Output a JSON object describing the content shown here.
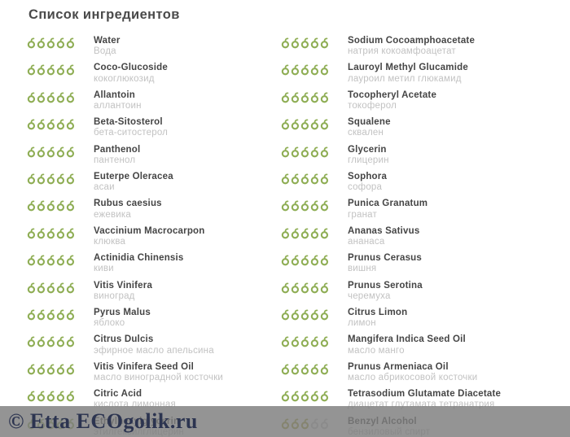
{
  "header": {
    "title": "Список ингредиентов"
  },
  "palette": {
    "drop_green": "#8fae55",
    "drop_olive": "#a9a733",
    "drop_gray": "#cccccc",
    "name_color": "#454545",
    "translation_color": "#c2c2c2",
    "watermark_text_color": "#2c3450"
  },
  "rating_scale": 5,
  "columns": [
    {
      "items": [
        {
          "name": "Water",
          "translation": "Вода",
          "drops": [
            "green",
            "green",
            "green",
            "green",
            "green"
          ]
        },
        {
          "name": "Coco-Glucoside",
          "translation": "кокоглюкозид",
          "drops": [
            "green",
            "green",
            "green",
            "green",
            "green"
          ]
        },
        {
          "name": "Allantoin",
          "translation": "аллантоин",
          "drops": [
            "green",
            "green",
            "green",
            "green",
            "green"
          ]
        },
        {
          "name": "Beta-Sitosterol",
          "translation": "бета-ситостерол",
          "drops": [
            "green",
            "green",
            "green",
            "green",
            "green"
          ]
        },
        {
          "name": "Panthenol",
          "translation": "пантенол",
          "drops": [
            "green",
            "green",
            "green",
            "green",
            "green"
          ]
        },
        {
          "name": "Euterpe Oleracea",
          "translation": "асаи",
          "drops": [
            "green",
            "green",
            "green",
            "green",
            "green"
          ]
        },
        {
          "name": "Rubus caesius",
          "translation": "ежевика",
          "drops": [
            "green",
            "green",
            "green",
            "green",
            "green"
          ]
        },
        {
          "name": "Vaccinium Macrocarpon",
          "translation": "клюква",
          "drops": [
            "green",
            "green",
            "green",
            "green",
            "green"
          ]
        },
        {
          "name": "Actinidia Chinensis",
          "translation": "киви",
          "drops": [
            "green",
            "green",
            "green",
            "green",
            "green"
          ]
        },
        {
          "name": "Vitis Vinifera",
          "translation": "виноград",
          "drops": [
            "green",
            "green",
            "green",
            "green",
            "green"
          ]
        },
        {
          "name": "Pyrus Malus",
          "translation": "яблоко",
          "drops": [
            "green",
            "green",
            "green",
            "green",
            "green"
          ]
        },
        {
          "name": "Citrus Dulcis",
          "translation": "эфирное масло апельсина",
          "drops": [
            "green",
            "green",
            "green",
            "green",
            "green"
          ]
        },
        {
          "name": "Vitis Vinifera Seed Oil",
          "translation": "масло виноградной косточки",
          "drops": [
            "green",
            "green",
            "green",
            "green",
            "green"
          ]
        },
        {
          "name": "Citric Acid",
          "translation": "кислота лимонная",
          "drops": [
            "green",
            "green",
            "green",
            "green",
            "green"
          ]
        },
        {
          "name": "Ethylhexylglycerin",
          "translation": "этилгексилглицерин",
          "drops": [
            "green",
            "green",
            "green",
            "green",
            "green"
          ]
        }
      ]
    },
    {
      "items": [
        {
          "name": "Sodium Cocoamphoacetate",
          "translation": "натрия кокоамфоацетат",
          "drops": [
            "green",
            "green",
            "green",
            "green",
            "green"
          ]
        },
        {
          "name": "Lauroyl Methyl Glucamide",
          "translation": "лауроил метил глюкамид",
          "drops": [
            "green",
            "green",
            "green",
            "green",
            "green"
          ]
        },
        {
          "name": "Tocopheryl Acetate",
          "translation": "токоферол",
          "drops": [
            "green",
            "green",
            "green",
            "green",
            "green"
          ]
        },
        {
          "name": "Squalene",
          "translation": "сквален",
          "drops": [
            "green",
            "green",
            "green",
            "green",
            "green"
          ]
        },
        {
          "name": "Glycerin",
          "translation": "глицерин",
          "drops": [
            "green",
            "green",
            "green",
            "green",
            "green"
          ]
        },
        {
          "name": "Sophora",
          "translation": "софора",
          "drops": [
            "green",
            "green",
            "green",
            "green",
            "green"
          ]
        },
        {
          "name": "Punica Granatum",
          "translation": "гранат",
          "drops": [
            "green",
            "green",
            "green",
            "green",
            "green"
          ]
        },
        {
          "name": "Ananas Sativus",
          "translation": "ананаса",
          "drops": [
            "green",
            "green",
            "green",
            "green",
            "green"
          ]
        },
        {
          "name": "Prunus Cerasus",
          "translation": "вишня",
          "drops": [
            "green",
            "green",
            "green",
            "green",
            "green"
          ]
        },
        {
          "name": "Prunus Serotina",
          "translation": "черемуха",
          "drops": [
            "green",
            "green",
            "green",
            "green",
            "green"
          ]
        },
        {
          "name": "Citrus Limon",
          "translation": "лимон",
          "drops": [
            "green",
            "green",
            "green",
            "green",
            "green"
          ]
        },
        {
          "name": "Mangifera Indica Seed Oil",
          "translation": "масло манго",
          "drops": [
            "green",
            "green",
            "green",
            "green",
            "green"
          ]
        },
        {
          "name": "Prunus Armeniaca Oil",
          "translation": "масло абрикосовой косточки",
          "drops": [
            "green",
            "green",
            "green",
            "green",
            "green"
          ]
        },
        {
          "name": "Tetrasodium Glutamate Diacetate",
          "translation": "диацетат глутамата тетранатрия",
          "drops": [
            "green",
            "green",
            "green",
            "green",
            "green"
          ]
        },
        {
          "name": "Benzyl Alcohol",
          "translation": "бензиловый спирт",
          "drops": [
            "olive",
            "olive",
            "olive",
            "gray",
            "gray"
          ]
        }
      ]
    }
  ],
  "watermark": {
    "text": "© Etta ECOgolik.ru"
  }
}
